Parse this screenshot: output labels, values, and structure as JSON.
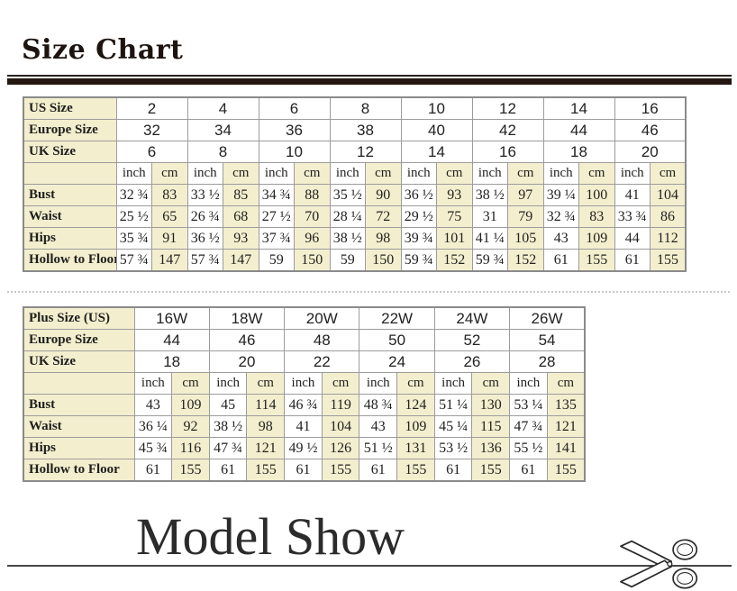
{
  "page": {
    "title": "Size Chart",
    "model_show": "Model Show",
    "colors": {
      "cream": "#f3eecd",
      "table_border": "#9c9c9c",
      "title_bar": "#241712",
      "text": "#222222"
    }
  },
  "units": {
    "inch": "inch",
    "cm": "cm"
  },
  "tables": [
    {
      "size_rows": [
        {
          "label": "US Size",
          "values": [
            "2",
            "4",
            "6",
            "8",
            "10",
            "12",
            "14",
            "16"
          ]
        },
        {
          "label": "Europe Size",
          "values": [
            "32",
            "34",
            "36",
            "38",
            "40",
            "42",
            "44",
            "46"
          ]
        },
        {
          "label": "UK Size",
          "values": [
            "6",
            "8",
            "10",
            "12",
            "14",
            "16",
            "18",
            "20"
          ]
        }
      ],
      "measure_rows": [
        {
          "label": "Bust",
          "values": [
            "32 ¾",
            "83",
            "33 ½",
            "85",
            "34 ¾",
            "88",
            "35 ½",
            "90",
            "36 ½",
            "93",
            "38 ½",
            "97",
            "39 ¼",
            "100",
            "41",
            "104"
          ]
        },
        {
          "label": "Waist",
          "values": [
            "25 ½",
            "65",
            "26 ¾",
            "68",
            "27 ½",
            "70",
            "28 ¼",
            "72",
            "29 ½",
            "75",
            "31",
            "79",
            "32 ¾",
            "83",
            "33 ¾",
            "86"
          ]
        },
        {
          "label": "Hips",
          "values": [
            "35 ¾",
            "91",
            "36 ½",
            "93",
            "37 ¾",
            "96",
            "38 ½",
            "98",
            "39 ¾",
            "101",
            "41 ¼",
            "105",
            "43",
            "109",
            "44",
            "112"
          ]
        },
        {
          "label": "Hollow to Floor",
          "values": [
            "57 ¾",
            "147",
            "57 ¾",
            "147",
            "59",
            "150",
            "59",
            "150",
            "59 ¾",
            "152",
            "59 ¾",
            "152",
            "61",
            "155",
            "61",
            "155"
          ]
        }
      ]
    },
    {
      "size_rows": [
        {
          "label": "Plus Size (US)",
          "values": [
            "16W",
            "18W",
            "20W",
            "22W",
            "24W",
            "26W"
          ]
        },
        {
          "label": "Europe Size",
          "values": [
            "44",
            "46",
            "48",
            "50",
            "52",
            "54"
          ]
        },
        {
          "label": "UK Size",
          "values": [
            "18",
            "20",
            "22",
            "24",
            "26",
            "28"
          ]
        }
      ],
      "measure_rows": [
        {
          "label": "Bust",
          "values": [
            "43",
            "109",
            "45",
            "114",
            "46 ¾",
            "119",
            "48 ¾",
            "124",
            "51 ¼",
            "130",
            "53 ¼",
            "135"
          ]
        },
        {
          "label": "Waist",
          "values": [
            "36 ¼",
            "92",
            "38 ½",
            "98",
            "41",
            "104",
            "43",
            "109",
            "45 ¼",
            "115",
            "47 ¾",
            "121"
          ]
        },
        {
          "label": "Hips",
          "values": [
            "45 ¾",
            "116",
            "47 ¾",
            "121",
            "49 ½",
            "126",
            "51 ½",
            "131",
            "53 ½",
            "136",
            "55 ½",
            "141"
          ]
        },
        {
          "label": "Hollow to Floor",
          "values": [
            "61",
            "155",
            "61",
            "155",
            "61",
            "155",
            "61",
            "155",
            "61",
            "155",
            "61",
            "155"
          ]
        }
      ]
    }
  ]
}
